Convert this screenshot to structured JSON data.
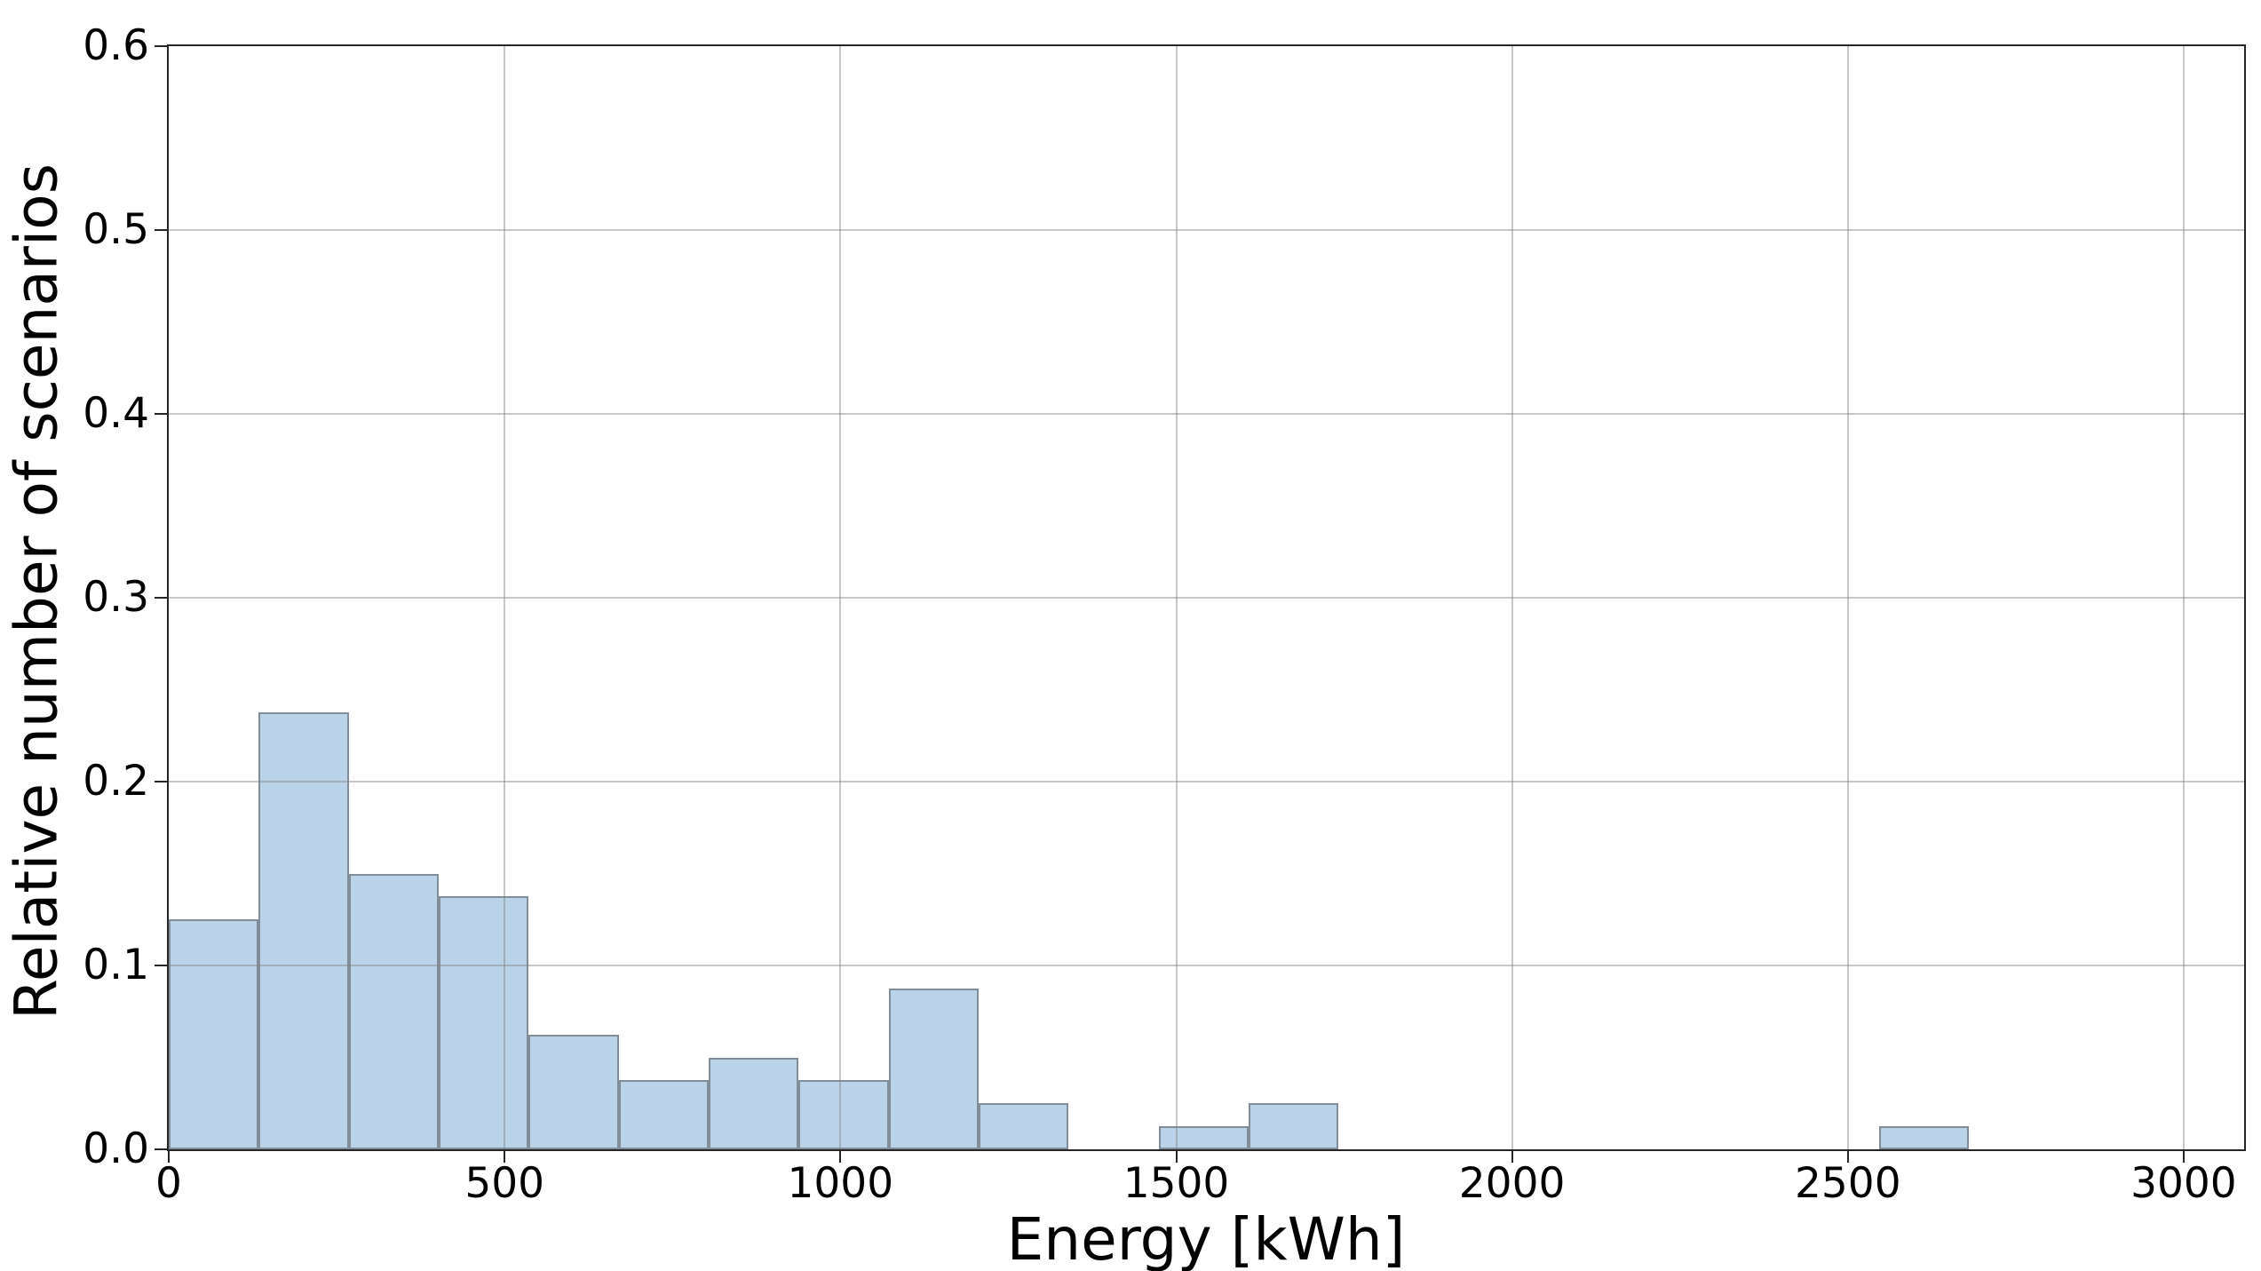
{
  "chart_data": {
    "type": "bar",
    "subtype": "histogram",
    "title": "",
    "xlabel": "Energy [kWh]",
    "ylabel": "Relative number of scenarios",
    "xlim": [
      0,
      3090
    ],
    "ylim": [
      0,
      0.6
    ],
    "x_tick_values": [
      0,
      500,
      1000,
      1500,
      2000,
      2500,
      3000
    ],
    "x_tick_labels": [
      "0",
      "500",
      "1000",
      "1500",
      "2000",
      "2500",
      "3000"
    ],
    "y_tick_values": [
      0,
      0.1,
      0.2,
      0.3,
      0.4,
      0.5,
      0.6
    ],
    "y_tick_labels": [
      "0.0",
      "0.1",
      "0.2",
      "0.3",
      "0.4",
      "0.5",
      "0.6"
    ],
    "grid": "both",
    "legend": false,
    "bin_width": 134,
    "bin_starts": [
      0,
      134,
      268,
      402,
      536,
      670,
      804,
      938,
      1072,
      1206,
      1340,
      1474,
      1608,
      1742,
      1876,
      2010,
      2144,
      2278,
      2412,
      2546
    ],
    "values": [
      0.125,
      0.2375,
      0.15,
      0.1375,
      0.0625,
      0.0375,
      0.05,
      0.0375,
      0.0875,
      0.025,
      0,
      0.0125,
      0.025,
      0,
      0,
      0,
      0,
      0,
      0,
      0.0125
    ]
  },
  "style": {
    "bar_fill": "#bad3e8",
    "bar_edge": "#818e9a",
    "grid_color": "#828282",
    "grid_opacity": 0.45,
    "spine_color": "#262626",
    "tick_color": "#262626",
    "text_color": "#000000",
    "background": "#ffffff"
  }
}
